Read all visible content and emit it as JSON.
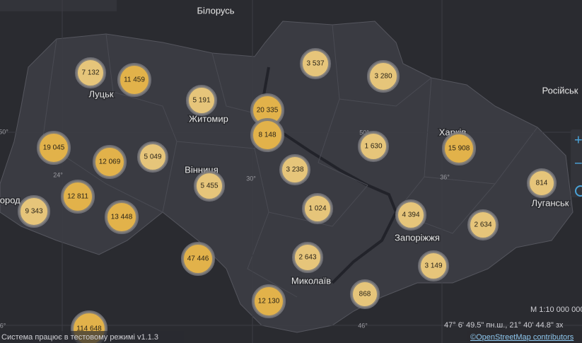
{
  "places": [
    "Білорусь",
    "Луцьк",
    "Житомир",
    "Вінниця",
    "Харків",
    "Луганськ",
    "Запоріжжя",
    "Миколаїв",
    "Російськ",
    "город"
  ],
  "graticule": [
    "50°",
    "24°",
    "30°",
    "50°",
    "36°",
    "46°",
    "6°"
  ],
  "clusters": [
    "7 132",
    "11 459",
    "5 191",
    "20 335",
    "8 148",
    "3 537",
    "3 280",
    "19 045",
    "12 069",
    "5 049",
    "3 238",
    "1 630",
    "15 908",
    "814",
    "12 811",
    "9 343",
    "13 448",
    "5 455",
    "1 024",
    "4 394",
    "2 634",
    "47 446",
    "2 643",
    "3 149",
    "12 130",
    "868",
    "114 648"
  ],
  "scale": "М 1:10 000 000",
  "coordinates": "47° 6' 49.5\" пн.ш., 21° 40' 44.8\" зх",
  "status": "Система працює в тестовому режимі v1.1.3",
  "attribution": "©OpenStreetMap contributors",
  "controls": [
    "+",
    "−"
  ]
}
